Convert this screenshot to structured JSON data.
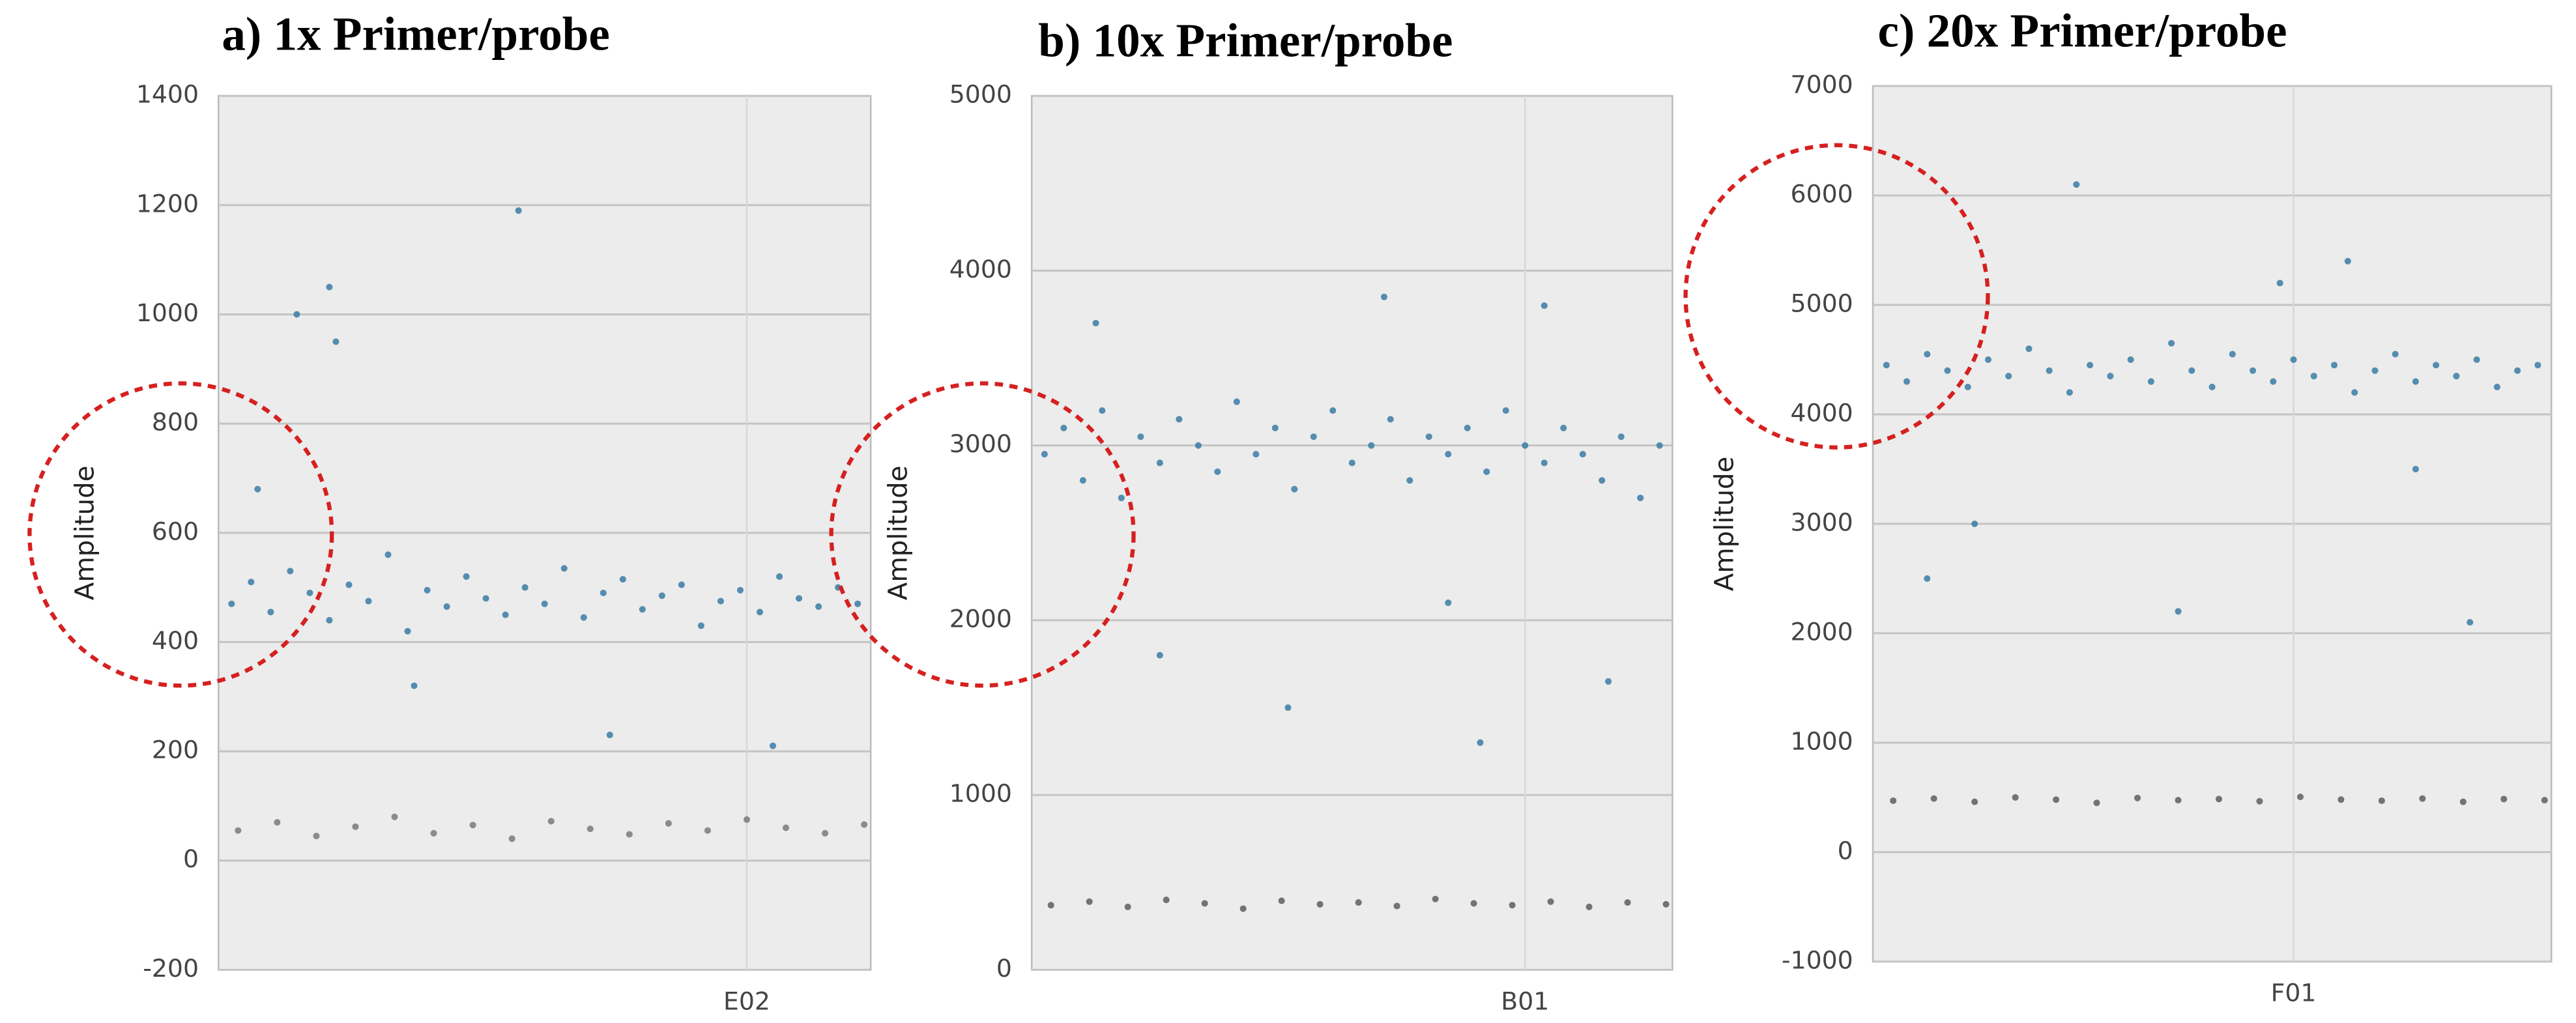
{
  "chart_data": [
    {
      "type": "scatter",
      "title": "a) 1x Primer/probe",
      "ylabel": "Amplitude",
      "xlim": [
        0,
        100
      ],
      "xticks": [
        {
          "value": 81,
          "label": "E02"
        }
      ],
      "ylim": [
        -200,
        1400
      ],
      "yticks": [
        -200,
        0,
        200,
        400,
        600,
        800,
        1000,
        1200,
        1400
      ],
      "grid": true,
      "series": [
        {
          "color": "#3a7ca5",
          "x": [
            2,
            5,
            8,
            11,
            14,
            17,
            20,
            23,
            26,
            29,
            32,
            35,
            38,
            41,
            44,
            47,
            50,
            53,
            56,
            59,
            62,
            65,
            68,
            71,
            74,
            77,
            80,
            83,
            86,
            89,
            92,
            95,
            98,
            12,
            17,
            18,
            46,
            6,
            30,
            60,
            85
          ],
          "values": [
            470,
            510,
            455,
            530,
            490,
            440,
            505,
            475,
            560,
            420,
            495,
            465,
            520,
            480,
            450,
            500,
            470,
            535,
            445,
            490,
            515,
            460,
            485,
            505,
            430,
            475,
            495,
            455,
            520,
            480,
            465,
            500,
            470,
            1000,
            1050,
            950,
            1190,
            680,
            320,
            230,
            210
          ]
        },
        {
          "color": "#7a7a7a",
          "x": [
            3,
            9,
            15,
            21,
            27,
            33,
            39,
            45,
            51,
            57,
            63,
            69,
            75,
            81,
            87,
            93,
            99
          ],
          "values": [
            55,
            70,
            45,
            62,
            80,
            50,
            65,
            40,
            72,
            58,
            48,
            68,
            55,
            75,
            60,
            50,
            66
          ]
        }
      ]
    },
    {
      "type": "scatter",
      "title": "b) 10x Primer/probe",
      "ylabel": "Amplitude",
      "xlim": [
        0,
        100
      ],
      "xticks": [
        {
          "value": 77,
          "label": "B01"
        }
      ],
      "ylim": [
        0,
        5000
      ],
      "yticks": [
        0,
        1000,
        2000,
        3000,
        4000,
        5000
      ],
      "grid": true,
      "series": [
        {
          "color": "#3a7ca5",
          "x": [
            2,
            5,
            8,
            11,
            14,
            17,
            20,
            23,
            26,
            29,
            32,
            35,
            38,
            41,
            44,
            47,
            50,
            53,
            56,
            59,
            62,
            65,
            68,
            71,
            74,
            77,
            80,
            83,
            86,
            89,
            92,
            95,
            98,
            20,
            40,
            55,
            70,
            80,
            90,
            10,
            65
          ],
          "values": [
            2950,
            3100,
            2800,
            3200,
            2700,
            3050,
            2900,
            3150,
            3000,
            2850,
            3250,
            2950,
            3100,
            2750,
            3050,
            3200,
            2900,
            3000,
            3150,
            2800,
            3050,
            2950,
            3100,
            2850,
            3200,
            3000,
            2900,
            3100,
            2950,
            2800,
            3050,
            2700,
            3000,
            1800,
            1500,
            3850,
            1300,
            3800,
            1650,
            3700,
            2100
          ]
        },
        {
          "color": "#5e5e5e",
          "x": [
            3,
            9,
            15,
            21,
            27,
            33,
            39,
            45,
            51,
            57,
            63,
            69,
            75,
            81,
            87,
            93,
            99
          ],
          "values": [
            370,
            390,
            360,
            400,
            380,
            350,
            395,
            375,
            385,
            365,
            405,
            380,
            370,
            390,
            360,
            385,
            375
          ]
        }
      ]
    },
    {
      "type": "scatter",
      "title": "c) 20x Primer/probe",
      "ylabel": "Amplitude",
      "xlim": [
        0,
        100
      ],
      "xticks": [
        {
          "value": 62,
          "label": "F01"
        }
      ],
      "ylim": [
        -1000,
        7000
      ],
      "yticks": [
        -1000,
        0,
        1000,
        2000,
        3000,
        4000,
        5000,
        6000,
        7000
      ],
      "grid": true,
      "series": [
        {
          "color": "#3a7ca5",
          "x": [
            2,
            5,
            8,
            11,
            14,
            17,
            20,
            23,
            26,
            29,
            32,
            35,
            38,
            41,
            44,
            47,
            50,
            53,
            56,
            59,
            62,
            65,
            68,
            71,
            74,
            77,
            80,
            83,
            86,
            89,
            92,
            95,
            98,
            8,
            30,
            45,
            70,
            80,
            88,
            15,
            60
          ],
          "values": [
            4450,
            4300,
            4550,
            4400,
            4250,
            4500,
            4350,
            4600,
            4400,
            4200,
            4450,
            4350,
            4500,
            4300,
            4650,
            4400,
            4250,
            4550,
            4400,
            4300,
            4500,
            4350,
            4450,
            4200,
            4400,
            4550,
            4300,
            4450,
            4350,
            4500,
            4250,
            4400,
            4450,
            2500,
            6100,
            2200,
            5400,
            3500,
            2100,
            3000,
            5200
          ]
        },
        {
          "color": "#5e5e5e",
          "x": [
            3,
            9,
            15,
            21,
            27,
            33,
            39,
            45,
            51,
            57,
            63,
            69,
            75,
            81,
            87,
            93,
            99
          ],
          "values": [
            470,
            490,
            460,
            500,
            480,
            450,
            495,
            475,
            485,
            465,
            505,
            480,
            470,
            490,
            460,
            485,
            475
          ]
        }
      ]
    }
  ]
}
